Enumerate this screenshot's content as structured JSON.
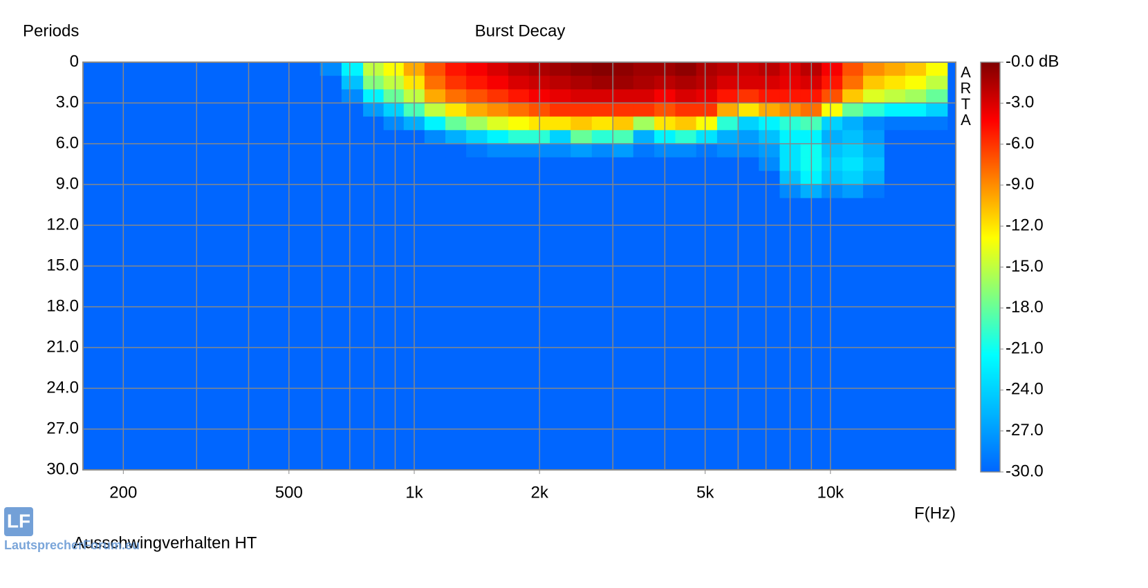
{
  "chart_data": {
    "type": "heatmap",
    "title": "Burst Decay",
    "y_label": "Periods",
    "x_label": "F(Hz)",
    "watermark": "ARTA",
    "caption": "Ausschwingverhalten HT",
    "logo": "LF",
    "logo_text": "LautsprecherForum.eu",
    "log_x": true,
    "grid": true,
    "xlim": [
      160,
      20000
    ],
    "xticks": [
      200,
      500,
      {
        "value": 1000,
        "label": "1k"
      },
      {
        "value": 2000,
        "label": "2k"
      },
      {
        "value": 5000,
        "label": "5k"
      },
      {
        "value": 10000,
        "label": "10k"
      }
    ],
    "xgrid": [
      200,
      300,
      400,
      500,
      600,
      700,
      800,
      900,
      1000,
      2000,
      3000,
      4000,
      5000,
      6000,
      7000,
      8000,
      9000,
      10000
    ],
    "ylim": [
      30,
      0
    ],
    "yticks": [
      0,
      {
        "value": 3,
        "label": "3.0"
      },
      {
        "value": 6,
        "label": "6.0"
      },
      {
        "value": 9,
        "label": "9.0"
      },
      {
        "value": 12,
        "label": "12.0"
      },
      {
        "value": 15,
        "label": "15.0"
      },
      {
        "value": 18,
        "label": "18.0"
      },
      {
        "value": 21,
        "label": "21.0"
      },
      {
        "value": 24,
        "label": "24.0"
      },
      {
        "value": 27,
        "label": "27.0"
      },
      {
        "value": 30,
        "label": "30.0"
      }
    ],
    "clim": [
      -30,
      0
    ],
    "cticks": [
      {
        "value": 0,
        "label": "-0.0 dB"
      },
      {
        "value": -3,
        "label": "-3.0"
      },
      {
        "value": -6,
        "label": "-6.0"
      },
      {
        "value": -9,
        "label": "-9.0"
      },
      {
        "value": -12,
        "label": "-12.0"
      },
      {
        "value": -15,
        "label": "-15.0"
      },
      {
        "value": -18,
        "label": "-18.0"
      },
      {
        "value": -21,
        "label": "-21.0"
      },
      {
        "value": -24,
        "label": "-24.0"
      },
      {
        "value": -27,
        "label": "-27.0"
      },
      {
        "value": -30,
        "label": "-30.0"
      }
    ],
    "colormap": [
      "#0066ff",
      "#00b4ff",
      "#00ffff",
      "#80ff80",
      "#ffff00",
      "#ff8000",
      "#ff0000",
      "#800000"
    ],
    "x": [
      630,
      710,
      800,
      890,
      1000,
      1120,
      1260,
      1410,
      1590,
      1780,
      2000,
      2240,
      2520,
      2830,
      3170,
      3560,
      4000,
      4490,
      5040,
      5660,
      6350,
      7130,
      8000,
      8980,
      10100,
      11300,
      12700,
      14300,
      16000,
      18000
    ],
    "y": [
      0,
      1,
      2,
      3,
      4,
      5,
      6,
      7,
      8,
      9,
      10
    ],
    "values": [
      [
        -28,
        -30,
        -30,
        -30,
        -30,
        -30,
        -30,
        -30,
        -30,
        -30,
        -30
      ],
      [
        -22,
        -25,
        -28,
        -30,
        -30,
        -30,
        -30,
        -30,
        -30,
        -30,
        -30
      ],
      [
        -15,
        -17,
        -22,
        -27,
        -30,
        -30,
        -30,
        -30,
        -30,
        -30,
        -30
      ],
      [
        -13,
        -15,
        -18,
        -24,
        -28,
        -30,
        -30,
        -30,
        -30,
        -30,
        -30
      ],
      [
        -10,
        -12,
        -15,
        -19,
        -26,
        -30,
        -30,
        -30,
        -30,
        -30,
        -30
      ],
      [
        -7,
        -8,
        -10,
        -15,
        -22,
        -28,
        -30,
        -30,
        -30,
        -30,
        -30
      ],
      [
        -5,
        -6,
        -8,
        -12,
        -18,
        -26,
        -30,
        -30,
        -30,
        -30,
        -30
      ],
      [
        -4,
        -5,
        -7,
        -10,
        -16,
        -24,
        -29,
        -30,
        -30,
        -30,
        -30
      ],
      [
        -3,
        -4,
        -6,
        -9,
        -14,
        -22,
        -28,
        -30,
        -30,
        -30,
        -30
      ],
      [
        -2,
        -3,
        -5,
        -8,
        -13,
        -20,
        -28,
        -30,
        -30,
        -30,
        -30
      ],
      [
        -1.5,
        -2.5,
        -4,
        -7,
        -12,
        -20,
        -28,
        -30,
        -30,
        -30,
        -30
      ],
      [
        -1,
        -2,
        -3.5,
        -6,
        -12,
        -24,
        -28,
        -30,
        -30,
        -30,
        -30
      ],
      [
        -0.5,
        -1.5,
        -3,
        -6,
        -11,
        -18,
        -27,
        -30,
        -30,
        -30,
        -30
      ],
      [
        -0.2,
        -1,
        -3,
        -6,
        -12,
        -20,
        -28,
        -30,
        -30,
        -30,
        -30
      ],
      [
        -0.5,
        -1,
        -3,
        -6,
        -11,
        -19,
        -27,
        -30,
        -30,
        -30,
        -30
      ],
      [
        -1,
        -1.5,
        -3,
        -6,
        -16,
        -26,
        -29,
        -30,
        -30,
        -30,
        -30
      ],
      [
        -1,
        -2,
        -4,
        -7,
        -12,
        -22,
        -28,
        -30,
        -30,
        -30,
        -30
      ],
      [
        -0.5,
        -1.5,
        -3,
        -6,
        -11,
        -20,
        -28,
        -30,
        -30,
        -30,
        -30
      ],
      [
        -1.5,
        -2,
        -3.5,
        -6,
        -13,
        -23,
        -29,
        -30,
        -30,
        -30,
        -30
      ],
      [
        -2,
        -3,
        -5,
        -10,
        -20,
        -26,
        -28,
        -30,
        -30,
        -30,
        -30
      ],
      [
        -2.5,
        -3,
        -6,
        -12,
        -24,
        -27,
        -28,
        -30,
        -30,
        -30,
        -30
      ],
      [
        -2,
        -3,
        -5,
        -10,
        -22,
        -25,
        -27,
        -28,
        -30,
        -30,
        -30
      ],
      [
        -3,
        -3.5,
        -5,
        -9,
        -20,
        -22,
        -23,
        -23,
        -25,
        -28,
        -30
      ],
      [
        -2,
        -3,
        -5,
        -8,
        -19,
        -22,
        -21,
        -21,
        -22,
        -26,
        -30
      ],
      [
        -4,
        -5,
        -7,
        -13,
        -24,
        -26,
        -25,
        -24,
        -25,
        -28,
        -30
      ],
      [
        -7,
        -8,
        -11,
        -18,
        -26,
        -25,
        -24,
        -23,
        -24,
        -27,
        -30
      ],
      [
        -9,
        -11,
        -14,
        -20,
        -28,
        -27,
        -26,
        -25,
        -26,
        -29,
        -30
      ],
      [
        -10,
        -12,
        -15,
        -22,
        -29,
        -30,
        -30,
        -30,
        -30,
        -30,
        -30
      ],
      [
        -11,
        -13,
        -16,
        -22,
        -29,
        -30,
        -30,
        -30,
        -30,
        -30,
        -30
      ],
      [
        -13,
        -15,
        -18,
        -24,
        -29,
        -30,
        -30,
        -30,
        -30,
        -30,
        -30
      ]
    ]
  }
}
